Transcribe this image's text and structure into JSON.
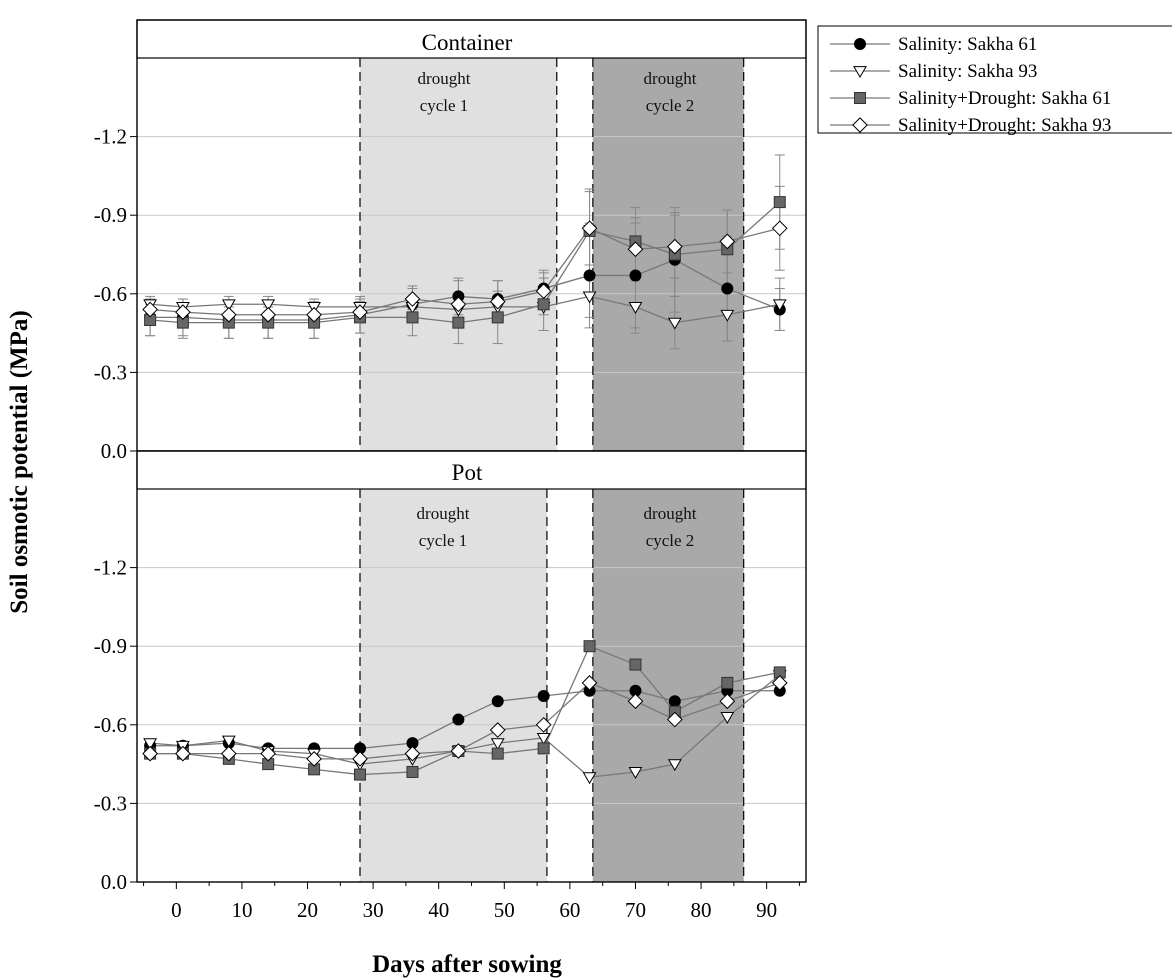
{
  "chart_data": {
    "type": "line",
    "xlabel": "Days after sowing",
    "ylabel": "Soil osmotic potential (MPa)",
    "xlim": [
      -6,
      96
    ],
    "ylim": [
      0,
      -1.5
    ],
    "x_ticks": [
      0,
      10,
      20,
      30,
      40,
      50,
      60,
      70,
      80,
      90
    ],
    "y_ticks": [
      0,
      -0.3,
      -0.6,
      -0.9,
      -1.2
    ],
    "y_tick_labels": [
      "0.0",
      "-0.3",
      "-0.6",
      "-0.9",
      "-1.2"
    ],
    "grid": "horizontal",
    "legend_position": "outside-top-right",
    "legend": [
      {
        "name": "Salinity: Sakha 61",
        "marker": "circle",
        "fill": "#000000"
      },
      {
        "name": "Salinity: Sakha 93",
        "marker": "triangle-down",
        "fill": "#ffffff"
      },
      {
        "name": "Salinity+Drought: Sakha 61",
        "marker": "square",
        "fill": "#666666"
      },
      {
        "name": "Salinity+Drought: Sakha 93",
        "marker": "diamond",
        "fill": "#ffffff"
      }
    ],
    "panels": [
      {
        "title": "Container",
        "shaded_regions": [
          {
            "label_line1": "drought",
            "label_line2": "cycle 1",
            "x_start": 28,
            "x_end": 58,
            "color": "#e0e0e0"
          },
          {
            "label_line1": "drought",
            "label_line2": "cycle 2",
            "x_start": 63.5,
            "x_end": 86.5,
            "color": "#a9a9a9"
          }
        ],
        "series": [
          {
            "name": "Salinity: Sakha 61",
            "x": [
              -4,
              1,
              8,
              14,
              21,
              28,
              36,
              43,
              49,
              56,
              63,
              70,
              76,
              84,
              92
            ],
            "y": [
              -0.51,
              -0.51,
              -0.5,
              -0.5,
              -0.5,
              -0.52,
              -0.56,
              -0.59,
              -0.58,
              -0.62,
              -0.67,
              -0.67,
              -0.73,
              -0.62,
              -0.54
            ],
            "err": [
              0.07,
              0.07,
              0.07,
              0.07,
              0.07,
              0.07,
              0.07,
              0.07,
              0.07,
              0.07,
              0.2,
              0.2,
              0.2,
              0.2,
              0.08
            ]
          },
          {
            "name": "Salinity: Sakha 93",
            "x": [
              -4,
              1,
              8,
              14,
              21,
              28,
              36,
              43,
              49,
              56,
              63,
              70,
              76,
              84,
              92
            ],
            "y": [
              -0.56,
              -0.55,
              -0.56,
              -0.56,
              -0.55,
              -0.55,
              -0.55,
              -0.54,
              -0.55,
              -0.55,
              -0.59,
              -0.55,
              -0.49,
              -0.52,
              -0.56
            ],
            "err": [
              0.03,
              0.03,
              0.03,
              0.03,
              0.03,
              0.03,
              0.03,
              0.03,
              0.03,
              0.03,
              0.08,
              0.1,
              0.1,
              0.1,
              0.1
            ]
          },
          {
            "name": "Salinity+Drought: Sakha 61",
            "x": [
              -4,
              1,
              8,
              14,
              21,
              28,
              36,
              43,
              49,
              56,
              63,
              70,
              76,
              84,
              92
            ],
            "y": [
              -0.5,
              -0.49,
              -0.49,
              -0.49,
              -0.49,
              -0.51,
              -0.51,
              -0.49,
              -0.51,
              -0.56,
              -0.84,
              -0.8,
              -0.75,
              -0.77,
              -0.95
            ],
            "err": [
              0.06,
              0.06,
              0.06,
              0.06,
              0.06,
              0.06,
              0.07,
              0.08,
              0.1,
              0.1,
              0.16,
              0.13,
              0.16,
              0.15,
              0.18
            ]
          },
          {
            "name": "Salinity+Drought: Sakha 93",
            "x": [
              -4,
              1,
              8,
              14,
              21,
              28,
              36,
              43,
              49,
              56,
              63,
              70,
              76,
              84,
              92
            ],
            "y": [
              -0.54,
              -0.53,
              -0.52,
              -0.52,
              -0.52,
              -0.53,
              -0.58,
              -0.56,
              -0.57,
              -0.61,
              -0.85,
              -0.77,
              -0.78,
              -0.8,
              -0.85
            ],
            "err": [
              0.03,
              0.03,
              0.03,
              0.03,
              0.03,
              0.03,
              0.04,
              0.09,
              0.08,
              0.07,
              0.14,
              0.12,
              0.12,
              0.12,
              0.16
            ]
          }
        ]
      },
      {
        "title": "Pot",
        "shaded_regions": [
          {
            "label_line1": "drought",
            "label_line2": "cycle 1",
            "x_start": 28,
            "x_end": 56.5,
            "color": "#e0e0e0"
          },
          {
            "label_line1": "drought",
            "label_line2": "cycle 2",
            "x_start": 63.5,
            "x_end": 86.5,
            "color": "#a9a9a9"
          }
        ],
        "series": [
          {
            "name": "Salinity: Sakha 61",
            "x": [
              -4,
              1,
              8,
              14,
              21,
              28,
              36,
              43,
              49,
              56,
              63,
              70,
              76,
              84,
              92
            ],
            "y": [
              -0.52,
              -0.52,
              -0.53,
              -0.51,
              -0.51,
              -0.51,
              -0.53,
              -0.62,
              -0.69,
              -0.71,
              -0.73,
              -0.73,
              -0.69,
              -0.73,
              -0.73
            ]
          },
          {
            "name": "Salinity: Sakha 93",
            "x": [
              -4,
              1,
              8,
              14,
              21,
              28,
              36,
              43,
              49,
              56,
              63,
              70,
              76,
              84,
              92
            ],
            "y": [
              -0.53,
              -0.52,
              -0.54,
              -0.5,
              -0.49,
              -0.45,
              -0.47,
              -0.5,
              -0.53,
              -0.55,
              -0.4,
              -0.42,
              -0.45,
              -0.63,
              -0.79
            ]
          },
          {
            "name": "Salinity+Drought: Sakha 61",
            "x": [
              -4,
              1,
              8,
              14,
              21,
              28,
              36,
              43,
              49,
              56,
              63,
              70,
              76,
              84,
              92
            ],
            "y": [
              -0.49,
              -0.49,
              -0.47,
              -0.45,
              -0.43,
              -0.41,
              -0.42,
              -0.5,
              -0.49,
              -0.51,
              -0.9,
              -0.83,
              -0.65,
              -0.76,
              -0.8
            ]
          },
          {
            "name": "Salinity+Drought: Sakha 93",
            "x": [
              -4,
              1,
              8,
              14,
              21,
              28,
              36,
              43,
              49,
              56,
              63,
              70,
              76,
              84,
              92
            ],
            "y": [
              -0.49,
              -0.49,
              -0.49,
              -0.49,
              -0.47,
              -0.47,
              -0.49,
              -0.5,
              -0.58,
              -0.6,
              -0.76,
              -0.69,
              -0.62,
              -0.69,
              -0.76
            ]
          }
        ]
      }
    ]
  }
}
